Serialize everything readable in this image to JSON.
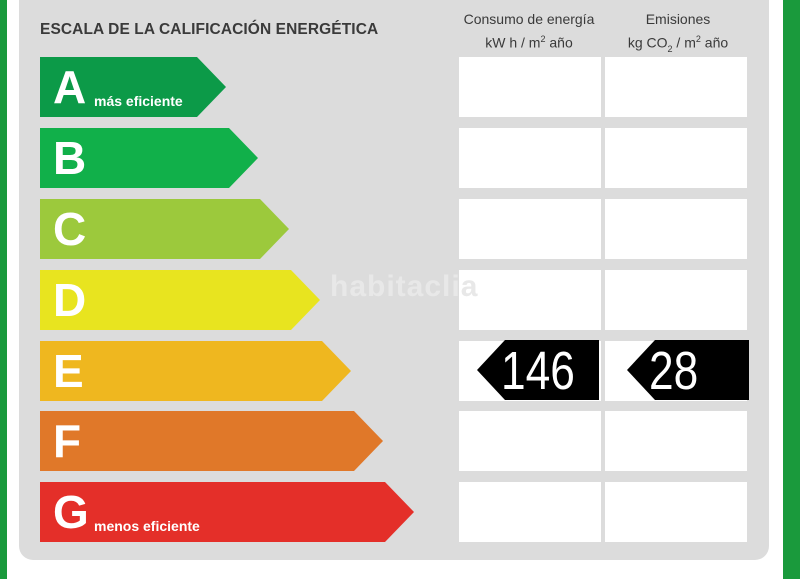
{
  "header": {
    "title": "ESCALA DE LA CALIFICACIÓN ENERGÉTICA",
    "col1_line1": "Consumo de energía",
    "col1_line2_pre": "kW h  / m",
    "col1_line2_sup": "2",
    "col1_line2_post": " año",
    "col2_line1": "Emisiones",
    "col2_line2_pre": "kg CO",
    "col2_line2_sub": "2",
    "col2_line2_post": "  / m",
    "col2_line2_sup": "2",
    "col2_line2_post2": " año"
  },
  "scale": [
    {
      "letter": "A",
      "note": "más eficiente",
      "color": "#0c9a48"
    },
    {
      "letter": "B",
      "note": "",
      "color": "#11b04a"
    },
    {
      "letter": "C",
      "note": "",
      "color": "#9cc93c"
    },
    {
      "letter": "D",
      "note": "",
      "color": "#e8e41f"
    },
    {
      "letter": "E",
      "note": "",
      "color": "#efb71f"
    },
    {
      "letter": "F",
      "note": "",
      "color": "#e07829"
    },
    {
      "letter": "G",
      "note": "menos eficiente",
      "color": "#e42f29"
    }
  ],
  "rating": {
    "class": "E",
    "consumo": "146",
    "emisiones": "28"
  },
  "watermark": "habitaclia"
}
